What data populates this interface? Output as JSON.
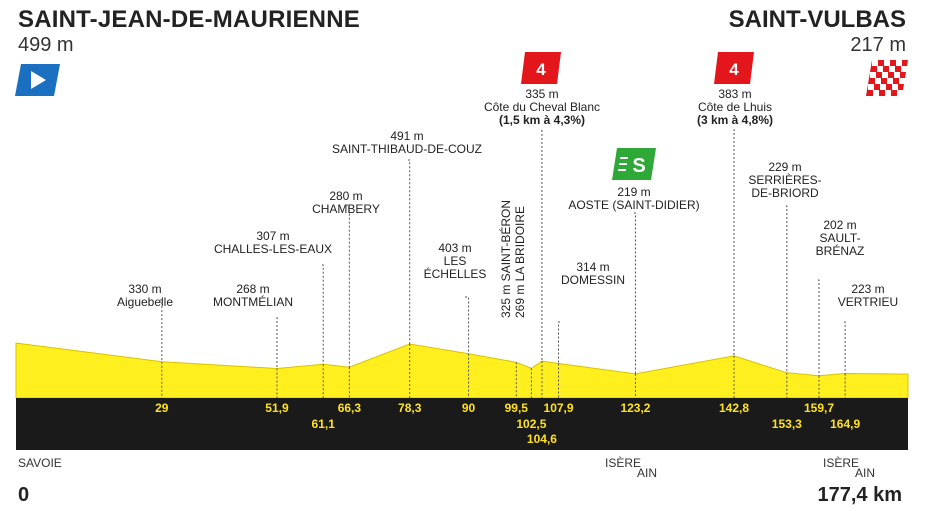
{
  "start": {
    "name": "SAINT-JEAN-DE-MAURIENNE",
    "altitude": "499 m"
  },
  "finish": {
    "name": "SAINT-VULBAS",
    "altitude": "217 m"
  },
  "distance": {
    "start": "0",
    "end": "177,4 km"
  },
  "regions": {
    "left": "SAVOIE",
    "mid_top": "ISÈRE",
    "mid_bottom": "AIN",
    "right_top": "ISÈRE",
    "right_bottom": "AIN"
  },
  "colors": {
    "profile": "#ffef1f",
    "band": "#1a1a1a",
    "km_text": "#ffe31a",
    "climb": "#e3161b",
    "sprint": "#2ea836",
    "start_flag": "#1a6fc0"
  },
  "icons": {
    "start": "start-flag-icon",
    "finish": "checkered-flag-icon",
    "climb": "climb-category-4-icon",
    "sprint": "intermediate-sprint-icon"
  },
  "chart_data": {
    "type": "area",
    "xlabel": "",
    "ylabel": "",
    "xlim": [
      0,
      177.4
    ],
    "profile": [
      [
        0,
        499
      ],
      [
        29,
        330
      ],
      [
        51.9,
        268
      ],
      [
        61.1,
        307
      ],
      [
        66.3,
        280
      ],
      [
        78.3,
        491
      ],
      [
        90,
        403
      ],
      [
        99.5,
        325
      ],
      [
        102.5,
        269
      ],
      [
        104.6,
        335
      ],
      [
        107.9,
        314
      ],
      [
        123.2,
        219
      ],
      [
        142.8,
        383
      ],
      [
        153.3,
        229
      ],
      [
        159.7,
        202
      ],
      [
        164.9,
        223
      ],
      [
        177.4,
        217
      ]
    ],
    "waypoints": [
      {
        "km": 29,
        "km_label": "29",
        "row": 0,
        "altitude": "330 m",
        "name": "Aiguebelle"
      },
      {
        "km": 51.9,
        "km_label": "51,9",
        "row": 0,
        "altitude": "268 m",
        "name": "MONTMÉLIAN"
      },
      {
        "km": 61.1,
        "km_label": "61,1",
        "row": 1,
        "altitude": "307 m",
        "name": "CHALLES-LES-EAUX"
      },
      {
        "km": 66.3,
        "km_label": "66,3",
        "row": 0,
        "altitude": "280 m",
        "name": "CHAMBERY"
      },
      {
        "km": 78.3,
        "km_label": "78,3",
        "row": 0,
        "altitude": "491 m",
        "name": "SAINT-THIBAUD-DE-COUZ"
      },
      {
        "km": 90,
        "km_label": "90",
        "row": 0,
        "altitude": "403 m",
        "name": "LES ÉCHELLES"
      },
      {
        "km": 99.5,
        "km_label": "99,5",
        "row": 0,
        "altitude": "325 m",
        "name": "SAINT-BÉRON"
      },
      {
        "km": 102.5,
        "km_label": "102,5",
        "row": 1,
        "altitude": "269 m",
        "name": "LA BRIDOIRE"
      },
      {
        "km": 104.6,
        "km_label": "104,6",
        "row": 2,
        "altitude": "335 m",
        "name": "Côte du Cheval Blanc",
        "detail": "(1,5 km à 4,3%)",
        "category": "4"
      },
      {
        "km": 107.9,
        "km_label": "107,9",
        "row": 0,
        "altitude": "314 m",
        "name": "DOMESSIN"
      },
      {
        "km": 123.2,
        "km_label": "123,2",
        "row": 0,
        "altitude": "219 m",
        "name": "AOSTE (SAINT-DIDIER)",
        "sprint": "S"
      },
      {
        "km": 142.8,
        "km_label": "142,8",
        "row": 0,
        "altitude": "383 m",
        "name": "Côte de Lhuis",
        "detail": "(3 km à 4,8%)",
        "category": "4"
      },
      {
        "km": 153.3,
        "km_label": "153,3",
        "row": 1,
        "altitude": "229 m",
        "name": "SERRIÈRES-DE-BRIORD"
      },
      {
        "km": 159.7,
        "km_label": "159,7",
        "row": 0,
        "altitude": "202 m",
        "name": "SAULT-BRÉNAZ"
      },
      {
        "km": 164.9,
        "km_label": "164,9",
        "row": 1,
        "altitude": "223 m",
        "name": "VERTRIEU"
      }
    ]
  }
}
